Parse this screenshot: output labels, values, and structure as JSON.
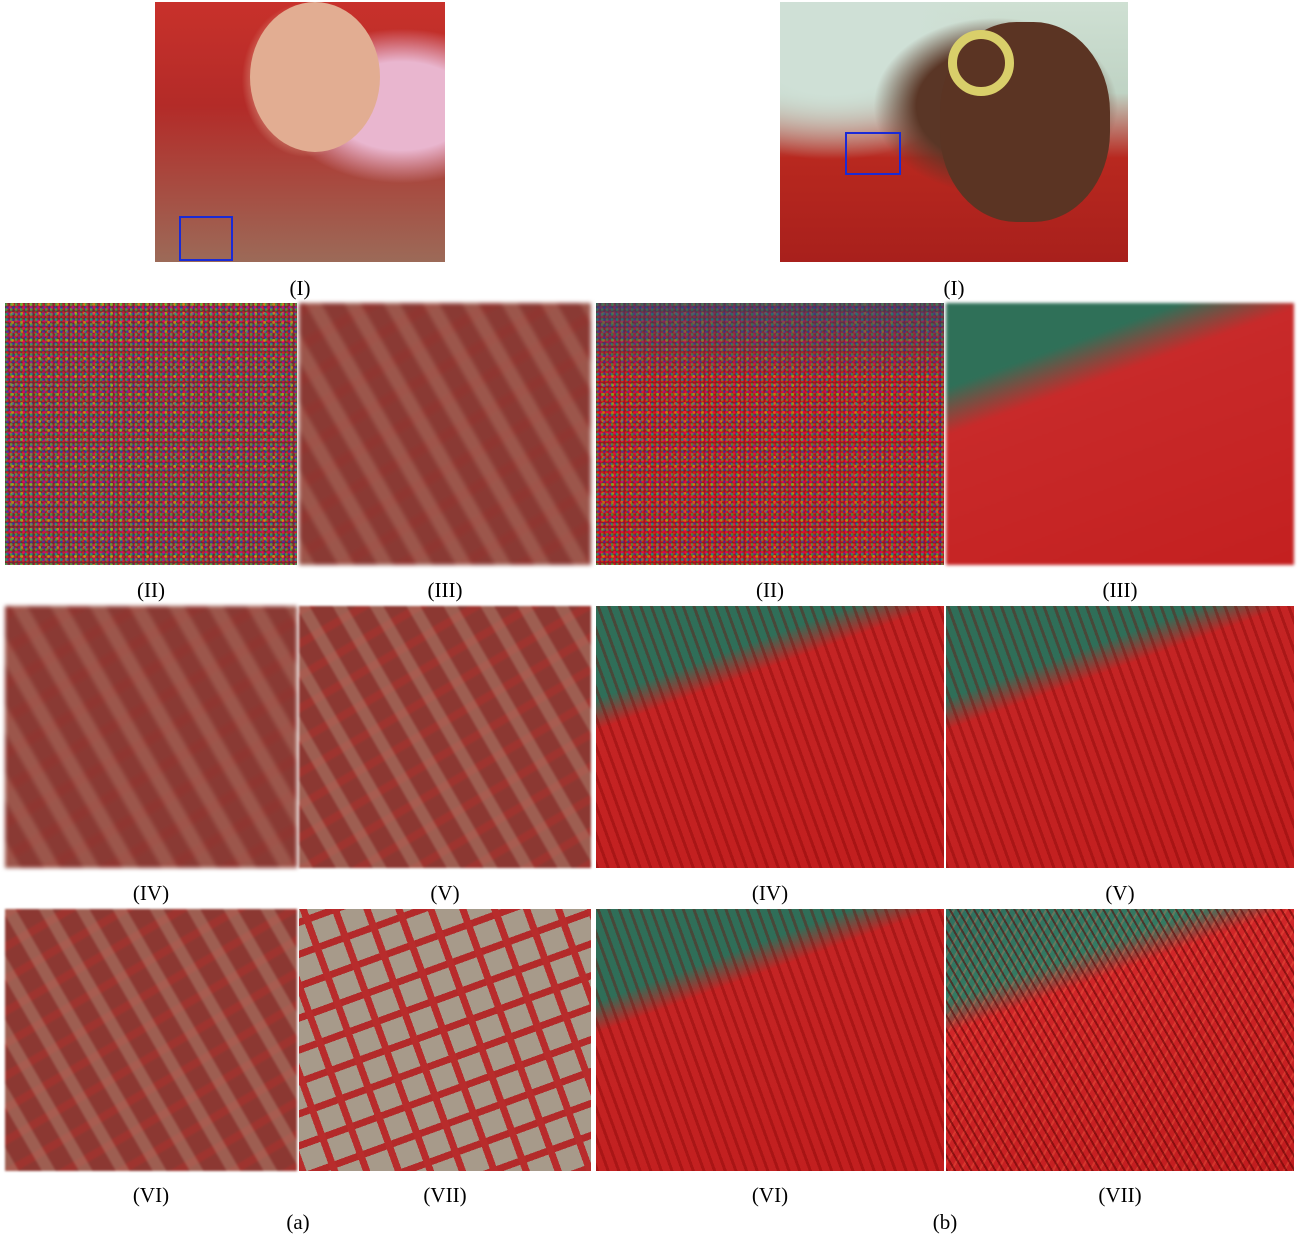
{
  "panels": {
    "a": {
      "label": "(a)",
      "original_label": "(I)",
      "crops": [
        "(II)",
        "(III)",
        "(IV)",
        "(V)",
        "(VI)",
        "(VII)"
      ]
    },
    "b": {
      "label": "(b)",
      "original_label": "(I)",
      "crops": [
        "(II)",
        "(III)",
        "(IV)",
        "(V)",
        "(VI)",
        "(VII)"
      ]
    }
  },
  "colors": {
    "highlight_box": "#1a2ad6"
  }
}
